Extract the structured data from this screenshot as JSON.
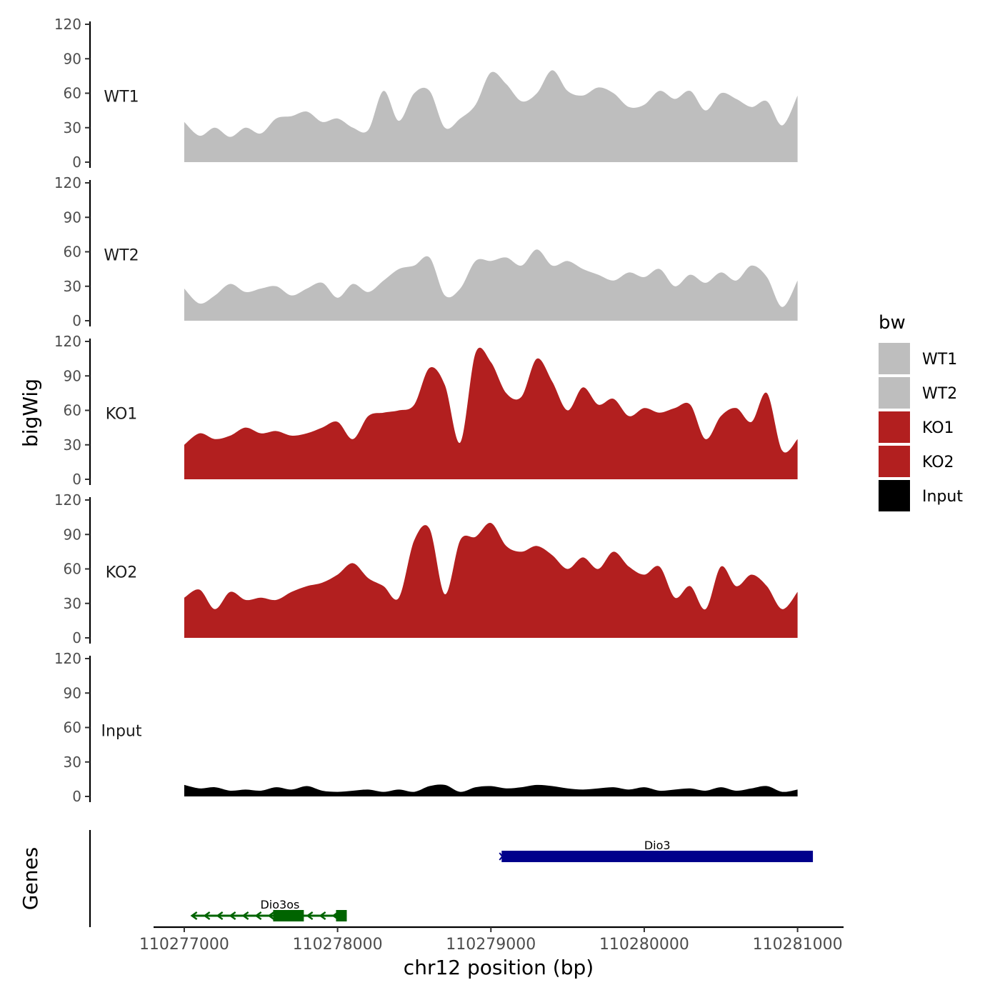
{
  "chart_data": {
    "type": "area",
    "ylabel": "bigWig",
    "genes_label": "Genes",
    "xlabel": "chr12 position (bp)",
    "xlim": [
      110276800,
      110281300
    ],
    "ylim": [
      0,
      120
    ],
    "y_ticks": [
      0,
      30,
      60,
      90,
      120
    ],
    "x_ticks": [
      110277000,
      110278000,
      110279000,
      110280000,
      110281000
    ],
    "legend": {
      "title": "bw",
      "position": "right",
      "entries": [
        {
          "label": "WT1",
          "color": "#bebebe"
        },
        {
          "label": "WT2",
          "color": "#bebebe"
        },
        {
          "label": "KO1",
          "color": "#b21f1f"
        },
        {
          "label": "KO2",
          "color": "#b21f1f"
        },
        {
          "label": "Input",
          "color": "#000000"
        }
      ]
    },
    "x": [
      110277000,
      110277100,
      110277200,
      110277300,
      110277400,
      110277500,
      110277600,
      110277700,
      110277800,
      110277900,
      110278000,
      110278100,
      110278200,
      110278300,
      110278400,
      110278500,
      110278600,
      110278700,
      110278800,
      110278900,
      110279000,
      110279100,
      110279200,
      110279300,
      110279400,
      110279500,
      110279600,
      110279700,
      110279800,
      110279900,
      110280000,
      110280100,
      110280200,
      110280300,
      110280400,
      110280500,
      110280600,
      110280700,
      110280800,
      110280900,
      110281000
    ],
    "series": [
      {
        "name": "WT1",
        "color": "#bebebe",
        "values": [
          35,
          23,
          30,
          22,
          30,
          25,
          38,
          40,
          44,
          35,
          38,
          30,
          28,
          62,
          36,
          60,
          62,
          30,
          38,
          50,
          78,
          68,
          53,
          60,
          80,
          62,
          58,
          65,
          60,
          48,
          50,
          62,
          55,
          62,
          45,
          60,
          55,
          48,
          53,
          32,
          58
        ]
      },
      {
        "name": "WT2",
        "color": "#bebebe",
        "values": [
          28,
          15,
          22,
          32,
          25,
          28,
          30,
          22,
          28,
          33,
          20,
          32,
          25,
          35,
          45,
          48,
          55,
          22,
          28,
          52,
          52,
          55,
          48,
          62,
          48,
          52,
          45,
          40,
          35,
          42,
          38,
          45,
          30,
          40,
          33,
          42,
          35,
          48,
          38,
          12,
          35
        ]
      },
      {
        "name": "KO1",
        "color": "#b21f1f",
        "values": [
          30,
          40,
          35,
          38,
          45,
          40,
          42,
          38,
          40,
          45,
          50,
          35,
          55,
          58,
          60,
          65,
          97,
          82,
          32,
          110,
          102,
          75,
          72,
          105,
          85,
          60,
          80,
          65,
          70,
          55,
          62,
          58,
          62,
          65,
          35,
          55,
          62,
          50,
          75,
          25,
          35
        ]
      },
      {
        "name": "KO2",
        "color": "#b21f1f",
        "values": [
          35,
          42,
          25,
          40,
          33,
          35,
          33,
          40,
          45,
          48,
          55,
          65,
          52,
          45,
          35,
          85,
          95,
          38,
          85,
          88,
          100,
          80,
          75,
          80,
          72,
          60,
          70,
          60,
          75,
          62,
          55,
          62,
          35,
          45,
          25,
          62,
          45,
          55,
          45,
          25,
          40
        ]
      },
      {
        "name": "Input",
        "color": "#000000",
        "values": [
          10,
          7,
          8,
          5,
          6,
          5,
          8,
          6,
          9,
          5,
          4,
          5,
          6,
          4,
          6,
          4,
          9,
          10,
          4,
          8,
          9,
          7,
          8,
          10,
          9,
          7,
          6,
          7,
          8,
          6,
          8,
          5,
          6,
          7,
          5,
          8,
          5,
          7,
          9,
          4,
          6
        ]
      }
    ],
    "genes": [
      {
        "name": "Dio3",
        "start": 110279070,
        "end": 110281100,
        "strand": "+",
        "color": "#00008b",
        "row": 0
      },
      {
        "name": "Dio3os",
        "start": 110277050,
        "end": 110278060,
        "strand": "-",
        "color": "#006400",
        "row": 1,
        "exons": [
          [
            110277580,
            110277780
          ],
          [
            110277990,
            110278060
          ]
        ]
      }
    ]
  }
}
